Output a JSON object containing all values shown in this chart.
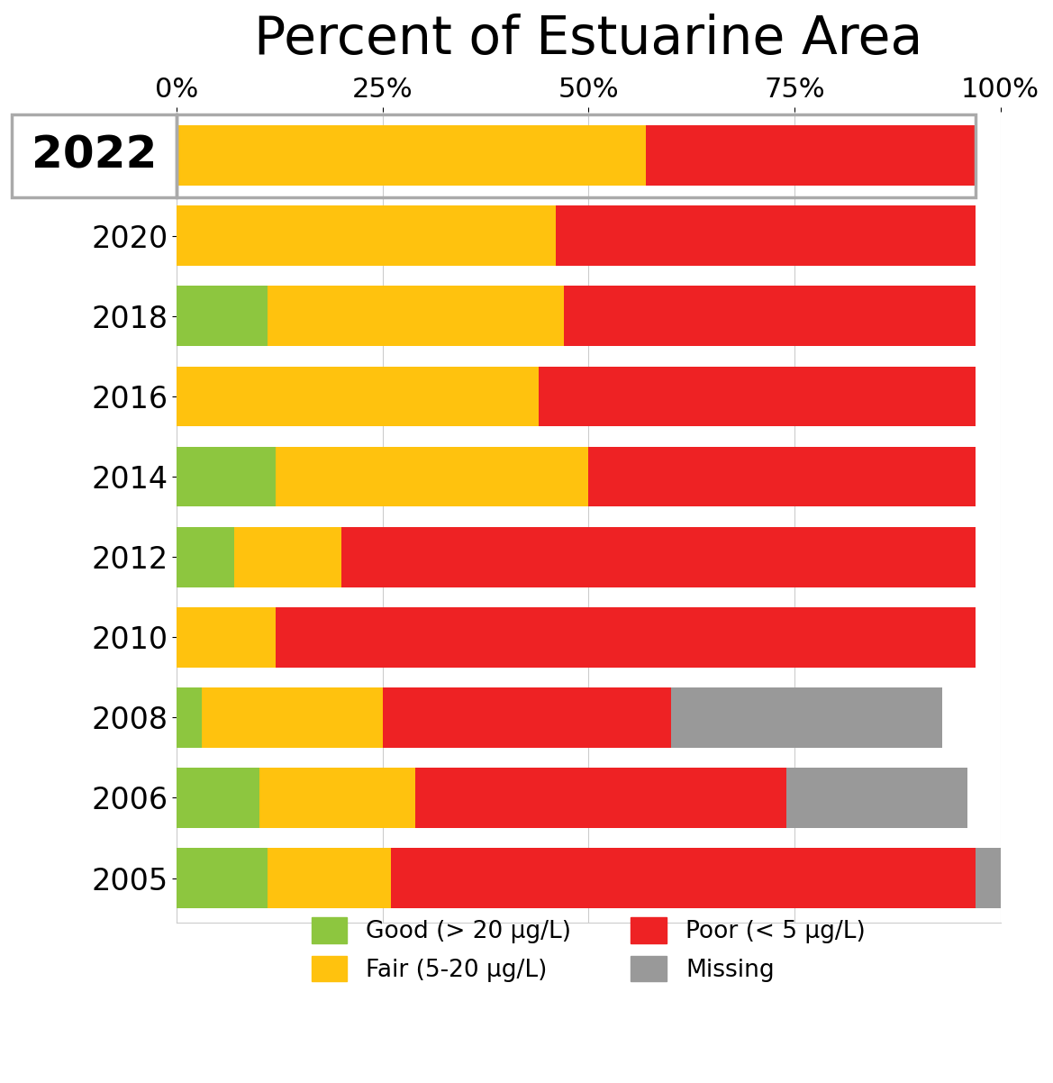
{
  "title": "Percent of Estuarine Area",
  "years": [
    "2022",
    "2020",
    "2018",
    "2016",
    "2014",
    "2012",
    "2010",
    "2008",
    "2006",
    "2005"
  ],
  "good": [
    0,
    0,
    11,
    0,
    12,
    7,
    0,
    3,
    10,
    11
  ],
  "fair": [
    57,
    46,
    36,
    44,
    38,
    13,
    12,
    22,
    19,
    15
  ],
  "poor": [
    40,
    51,
    50,
    53,
    47,
    77,
    85,
    35,
    45,
    71
  ],
  "missing": [
    0,
    0,
    0,
    0,
    0,
    0,
    0,
    33,
    22,
    3
  ],
  "color_good": "#8dc63f",
  "color_fair": "#ffc20e",
  "color_poor": "#ee2224",
  "color_missing": "#999999",
  "xlim": [
    0,
    100
  ],
  "xticks": [
    0,
    25,
    50,
    75,
    100
  ],
  "xticklabels": [
    "0%",
    "25%",
    "50%",
    "75%",
    "100%"
  ],
  "legend_labels": [
    "Good (> 20 μg/L)",
    "Fair (5-20 μg/L)",
    "Poor (< 5 μg/L)",
    "Missing"
  ],
  "bar_height": 0.75,
  "title_fontsize": 42,
  "ytick_fontsize": 24,
  "ytick_2022_fontsize": 36,
  "xtick_fontsize": 22,
  "legend_fontsize": 19,
  "grid_color": "#cccccc",
  "highlight_color": "#aaaaaa",
  "highlight_lw": 2.5
}
